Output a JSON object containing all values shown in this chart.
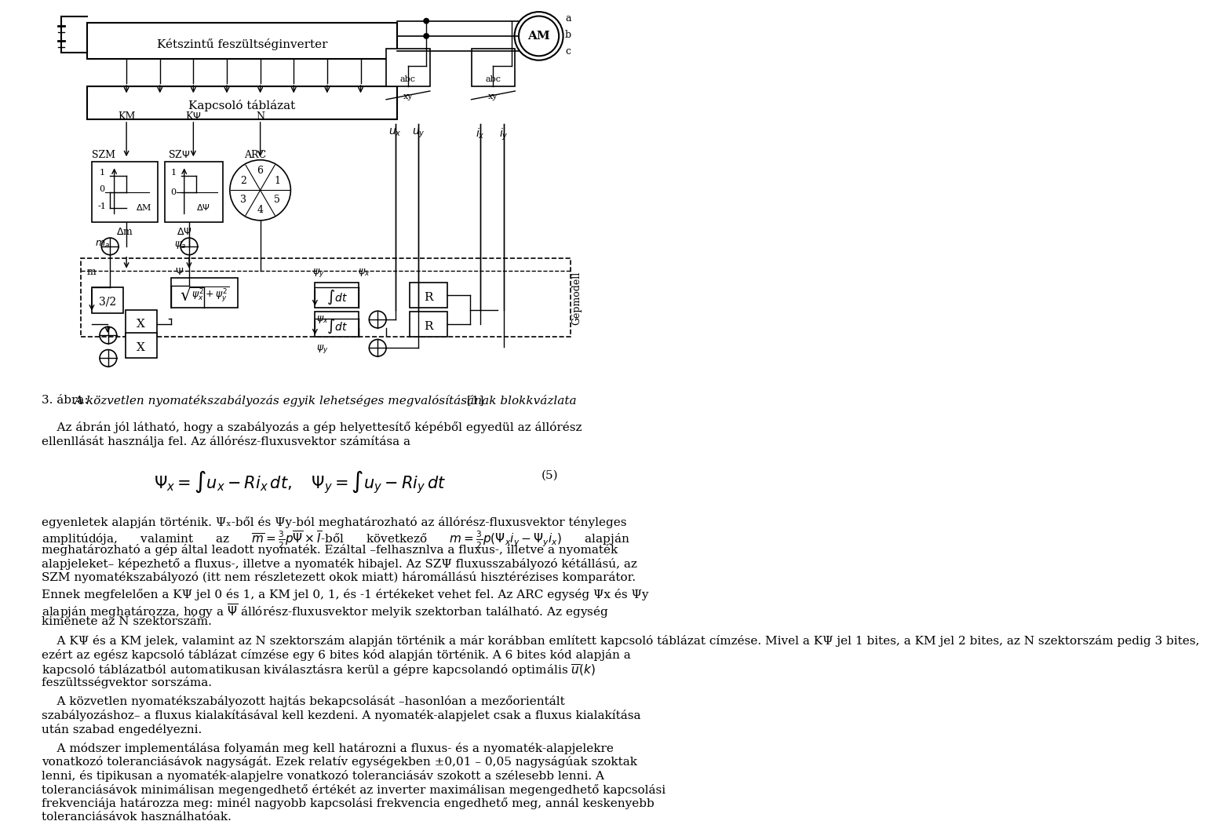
{
  "bg_color": "#ffffff",
  "text_color": "#000000",
  "caption_normal": "3. ábra: ",
  "caption_italic": "A közvetlen nyomatékszabályozás egyik lehetséges megvalósításának blokkvázlata",
  "caption_end": " [1]",
  "p1l1": "    Az ábrán jól látható, hogy a szabályozás a gép helyettesítő képéből egyedül az állórész",
  "p1l2": "ellenllását használja fel. Az állórész-fluxusvektor számítása a",
  "eq_label": "(5)",
  "p2l1": "egyenletek alapján történik. Ψₓ-ből és Ψy-ból meghatározható az állórész-fluxusvektor tényleges",
  "p2l3": "meghatározható a gép által leadott nyomaték. Ezáltal –felhasznlva a fluxus-, illetve a nyomaték",
  "p2l4": "alapjeleket– képezhető a fluxus-, illetve a nyomaték hibajel. Az SZΨ fluxusszabályozó kétállású, az",
  "p2l5": "SZM nyomatékszabályozó (itt nem részletezett okok miatt) háromállású hisztérézises komparátor.",
  "p3l1": "Ennek megfelelően a KΨ jel 0 és 1, a KM jel 0, 1, és -1 értékeket vehet fel. Az ARC egység Ψx és Ψy",
  "p3l2": "alapján meghatározza, hogy a Ψ̅ állórész-fluxusvektor melyik szektorban található. Az egység",
  "p3l3": "kimenete az N szektorszám.",
  "p4l1": "    A KΨ és a KM jelek, valamint az N szektorszám alapján történik a már korábban említett kapcsoló táblázat címzése. Mivel a KΨ jel 1 bites, a KM jel 2 bites, az N szektorszám pedig 3 bites,",
  "p4l2": "ezért az egész kapcsoló táblázat címzése egy 6 bites kód alapján történik. A 6 bites kód alapján a",
  "p4l3": "kapcsoló táblázatból automatikusan kiválasztásra kerül a gépre kapcsolandó optimális ",
  "p4l4": "feszültsségvektor sorszáma.",
  "p5l1": "    A közvetlen nyomatékszabályozott hajtás bekapcsolását –hasonlóan a mezőorientált",
  "p5l2": "szabályozáshoz– a fluxus kialakításával kell kezdeni. A nyomaték-alapjelet csak a fluxus kialakítása",
  "p5l3": "után szabad engedélyezni.",
  "p6l1": "    A módszer implementálása folyamán meg kell határozni a fluxus- és a nyomaték-alapjelekre",
  "p6l2": "vonatkozó toleranciásávok nagyságát. Ezek relatív egységekben ±0,01 – 0,05 nagyságúak szoktak",
  "p6l3": "lenni, és tipikusan a nyomaték-alapjelre vonatkozó toleranciásáv szokott a szélesebb lenni. A",
  "p6l4": "toleranciásávok minimálisan megengedhető értékét az inverter maximálisan megengedhető kapcsolási",
  "p6l5": "frekvenciája határozza meg: minél nagyobb kapcsolási frekvencia engedhető meg, annál keskenyebb",
  "p6l6": "toleranciásávok használhatóak."
}
